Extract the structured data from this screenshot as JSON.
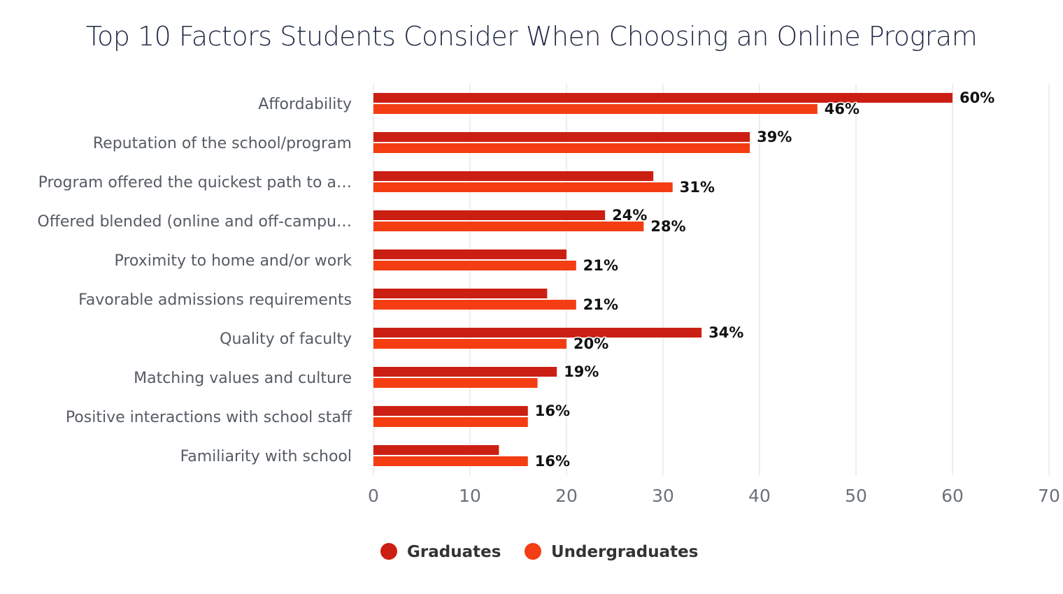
{
  "chart_data": {
    "type": "bar",
    "orientation": "horizontal",
    "title": "Top 10 Factors Students Consider When Choosing an Online Program",
    "categories": [
      "Affordability",
      "Reputation of the school/program",
      "Program offered the quickest path to a…",
      "Offered blended (online and off-campu…",
      "Proximity to home and/or work",
      "Favorable admissions requirements",
      "Quality of faculty",
      "Matching values and culture",
      "Positive interactions with school staff",
      "Familiarity with school"
    ],
    "series": [
      {
        "name": "Graduates",
        "color": "#cc1f14",
        "values": [
          60,
          39,
          29,
          24,
          20,
          18,
          34,
          19,
          16,
          13
        ],
        "labels": [
          "60%",
          "39%",
          "",
          "24%",
          "",
          "",
          "34%",
          "19%",
          "16%",
          ""
        ]
      },
      {
        "name": "Undergraduates",
        "color": "#f43d12",
        "values": [
          46,
          39,
          31,
          28,
          21,
          21,
          20,
          17,
          16,
          16
        ],
        "labels": [
          "46%",
          "",
          "31%",
          "28%",
          "21%",
          "21%",
          "20%",
          "",
          "",
          "16%"
        ]
      }
    ],
    "xlim": [
      0,
      70
    ],
    "xticks": [
      "0",
      "10",
      "20",
      "30",
      "40",
      "50",
      "60",
      "70"
    ],
    "grid": true,
    "legend": "bottom-center"
  }
}
